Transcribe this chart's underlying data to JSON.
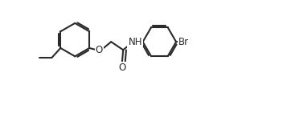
{
  "bg_color": "#ffffff",
  "line_color": "#2a2a2a",
  "line_width": 1.5,
  "figsize": [
    3.62,
    1.51
  ],
  "dpi": 100,
  "xlim": [
    0,
    9.5
  ],
  "ylim": [
    -2.2,
    3.0
  ],
  "font_size_atoms": 8.5
}
